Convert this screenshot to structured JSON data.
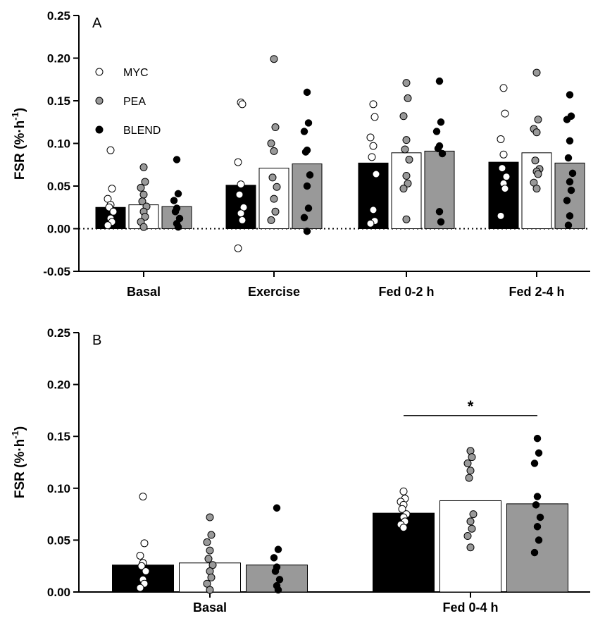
{
  "chart_data": [
    {
      "type": "bar",
      "panel_label": "A",
      "ylabel": "FSR (%·h",
      "ylabel_sup": "-1",
      "ylabel_close": ")",
      "ylim": [
        -0.05,
        0.25
      ],
      "yticks": [
        "-0.05",
        "0.00",
        "0.05",
        "0.10",
        "0.15",
        "0.20",
        "0.25"
      ],
      "ytick_values": [
        -0.05,
        0.0,
        0.05,
        0.1,
        0.15,
        0.2,
        0.25
      ],
      "zero_line": "dotted",
      "grid": false,
      "legend_position": "top-left",
      "categories": [
        "Basal",
        "Exercise",
        "Fed 0-2 h",
        "Fed 2-4 h"
      ],
      "series": [
        {
          "name": "MYC",
          "bar_color": "#000000",
          "point_color": "#ffffff",
          "values": [
            0.025,
            0.051,
            0.077,
            0.078
          ],
          "points": [
            [
              0.092,
              0.047,
              0.035,
              0.028,
              0.025,
              0.02,
              0.012,
              0.008,
              0.004
            ],
            [
              0.148,
              0.146,
              0.078,
              0.052,
              0.04,
              0.025,
              0.018,
              0.01,
              -0.023
            ],
            [
              0.146,
              0.131,
              0.107,
              0.097,
              0.084,
              0.064,
              0.022,
              0.009,
              0.006
            ],
            [
              0.165,
              0.135,
              0.105,
              0.087,
              0.071,
              0.061,
              0.053,
              0.047,
              0.015
            ]
          ]
        },
        {
          "name": "PEA",
          "bar_color": "#ffffff",
          "point_color": "#999999",
          "values": [
            0.028,
            0.071,
            0.089,
            0.089
          ],
          "points": [
            [
              0.072,
              0.055,
              0.048,
              0.04,
              0.032,
              0.026,
              0.02,
              0.014,
              0.008,
              0.002
            ],
            [
              0.199,
              0.119,
              0.1,
              0.091,
              0.06,
              0.049,
              0.035,
              0.02,
              0.01
            ],
            [
              0.171,
              0.153,
              0.132,
              0.104,
              0.093,
              0.081,
              0.062,
              0.053,
              0.047,
              0.011
            ],
            [
              0.183,
              0.128,
              0.117,
              0.113,
              0.08,
              0.07,
              0.067,
              0.064,
              0.054,
              0.047
            ]
          ]
        },
        {
          "name": "BLEND",
          "bar_color": "#999999",
          "point_color": "#000000",
          "values": [
            0.026,
            0.076,
            0.091,
            0.077
          ],
          "points": [
            [
              0.081,
              0.041,
              0.033,
              0.024,
              0.02,
              0.012,
              0.006,
              0.002
            ],
            [
              0.16,
              0.124,
              0.114,
              0.092,
              0.09,
              0.063,
              0.05,
              0.024,
              0.013,
              -0.003
            ],
            [
              0.173,
              0.125,
              0.114,
              0.097,
              0.094,
              0.088,
              0.02,
              0.008
            ],
            [
              0.157,
              0.132,
              0.128,
              0.103,
              0.083,
              0.065,
              0.055,
              0.045,
              0.033,
              0.015,
              0.004
            ]
          ]
        }
      ]
    },
    {
      "type": "bar",
      "panel_label": "B",
      "ylabel": "FSR (%·h",
      "ylabel_sup": "-1",
      "ylabel_close": ")",
      "ylim": [
        0.0,
        0.25
      ],
      "yticks": [
        "0.00",
        "0.05",
        "0.10",
        "0.15",
        "0.20",
        "0.25"
      ],
      "ytick_values": [
        0.0,
        0.05,
        0.1,
        0.15,
        0.2,
        0.25
      ],
      "grid": false,
      "categories": [
        "Basal",
        "Fed 0-4 h"
      ],
      "significance": {
        "label": "*",
        "from_category": 1,
        "from_series": 0,
        "to_series": 2,
        "y": 0.17
      },
      "series": [
        {
          "name": "MYC",
          "bar_color": "#000000",
          "point_color": "#ffffff",
          "values": [
            0.026,
            0.076
          ],
          "points": [
            [
              0.092,
              0.047,
              0.035,
              0.028,
              0.025,
              0.02,
              0.012,
              0.008,
              0.004
            ],
            [
              0.097,
              0.09,
              0.087,
              0.084,
              0.08,
              0.075,
              0.072,
              0.068,
              0.065,
              0.062
            ]
          ]
        },
        {
          "name": "PEA",
          "bar_color": "#ffffff",
          "point_color": "#999999",
          "values": [
            0.028,
            0.088
          ],
          "points": [
            [
              0.072,
              0.055,
              0.048,
              0.04,
              0.032,
              0.026,
              0.02,
              0.014,
              0.008,
              0.002
            ],
            [
              0.136,
              0.13,
              0.124,
              0.117,
              0.11,
              0.075,
              0.068,
              0.061,
              0.054,
              0.043
            ]
          ]
        },
        {
          "name": "BLEND",
          "bar_color": "#999999",
          "point_color": "#000000",
          "values": [
            0.026,
            0.085
          ],
          "points": [
            [
              0.081,
              0.041,
              0.033,
              0.024,
              0.02,
              0.012,
              0.006,
              0.002
            ],
            [
              0.148,
              0.134,
              0.124,
              0.092,
              0.084,
              0.072,
              0.063,
              0.05,
              0.038
            ]
          ]
        }
      ]
    }
  ]
}
